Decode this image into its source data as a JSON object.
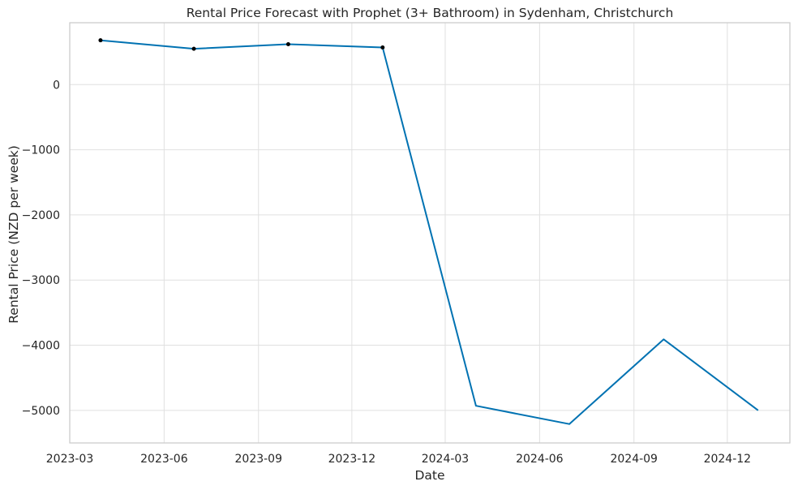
{
  "chart_data": {
    "type": "line",
    "title": "Rental Price Forecast with Prophet (3+ Bathroom) in Sydenham, Christchurch",
    "xlabel": "Date",
    "ylabel": "Rental Price (NZD per week)",
    "xlim": [
      "2023-03-01",
      "2025-01-31"
    ],
    "ylim": [
      -5500,
      950
    ],
    "grid": true,
    "x_ticks": [
      "2023-03",
      "2023-06",
      "2023-09",
      "2023-12",
      "2024-03",
      "2024-06",
      "2024-09",
      "2024-12"
    ],
    "y_ticks": [
      0,
      -1000,
      -2000,
      -3000,
      -4000,
      -5000
    ],
    "colors": {
      "forecast": "#0072b2",
      "observed": "#000000",
      "grid": "#e0e0e0",
      "spine": "#cccccc"
    },
    "series": [
      {
        "role": "forecast",
        "x": [
          "2023-03-31",
          "2023-06-30",
          "2023-09-30",
          "2023-12-31",
          "2024-03-31",
          "2024-06-30",
          "2024-09-30",
          "2024-12-31"
        ],
        "y": [
          680,
          550,
          620,
          570,
          -4930,
          -5210,
          -3910,
          -5000
        ]
      },
      {
        "role": "observed",
        "style": "scatter",
        "x": [
          "2023-03-31",
          "2023-06-30",
          "2023-09-30",
          "2023-12-31"
        ],
        "y": [
          680,
          550,
          620,
          570
        ]
      }
    ]
  }
}
